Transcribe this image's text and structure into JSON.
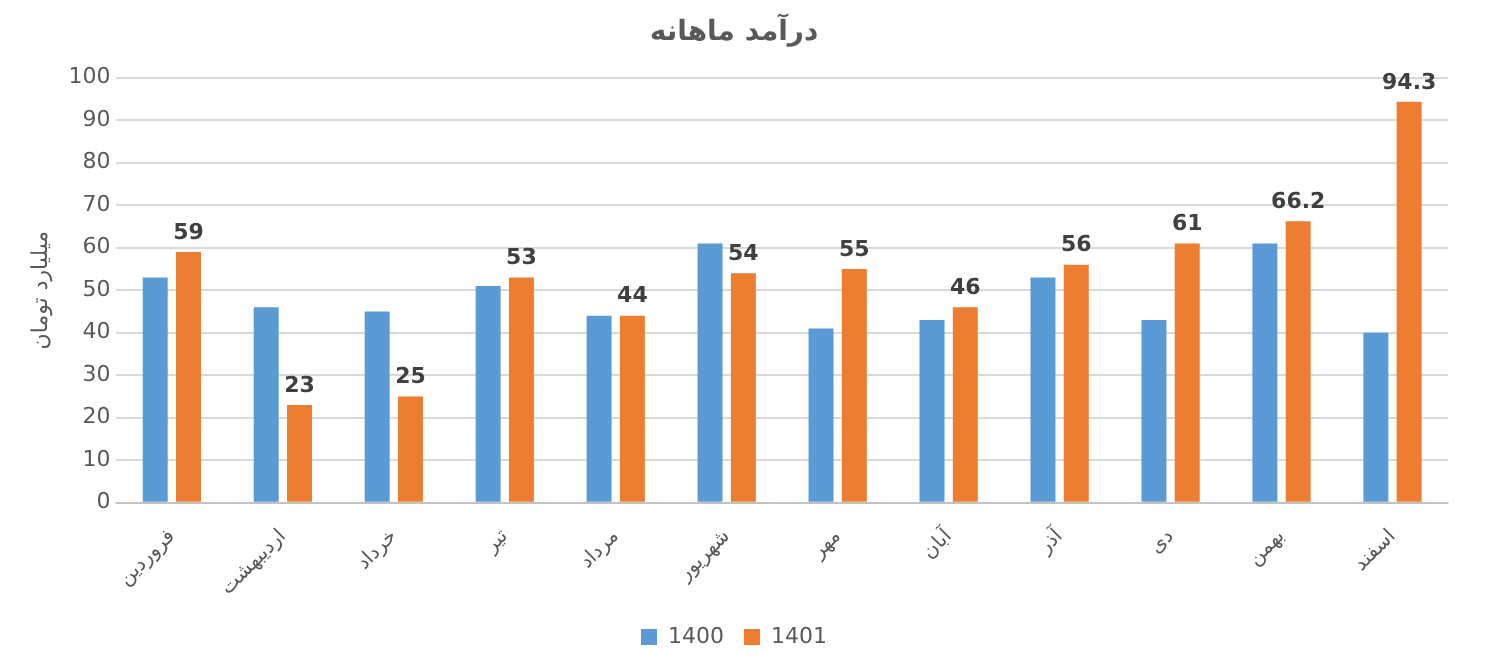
{
  "chart_data": {
    "type": "bar",
    "title": "درآمد ماهانه",
    "ylabel": "میلیارد تومان",
    "categories": [
      "فروردین",
      "اردیبهشت",
      "خرداد",
      "تیر",
      "مرداد",
      "شهریور",
      "مهر",
      "آبان",
      "آذر",
      "دی",
      "بهمن",
      "اسفند"
    ],
    "series": [
      {
        "name": "1400",
        "color": "#5b9bd5",
        "values": [
          53,
          46,
          45,
          51,
          44,
          61,
          41,
          43,
          53,
          43,
          61,
          40
        ]
      },
      {
        "name": "1401",
        "color": "#ed7d31",
        "values": [
          59,
          23,
          25,
          53,
          44,
          54,
          55,
          46,
          56,
          61,
          66.2,
          94.3
        ],
        "value_labels": [
          "59",
          "23",
          "25",
          "53",
          "44",
          "54",
          "55",
          "46",
          "56",
          "61",
          "66.2",
          "94.3"
        ]
      }
    ],
    "ylim": [
      0,
      100
    ],
    "yticks": [
      0,
      10,
      20,
      30,
      40,
      50,
      60,
      70,
      80,
      90,
      100
    ],
    "grid": "y",
    "legend": "bottom"
  }
}
